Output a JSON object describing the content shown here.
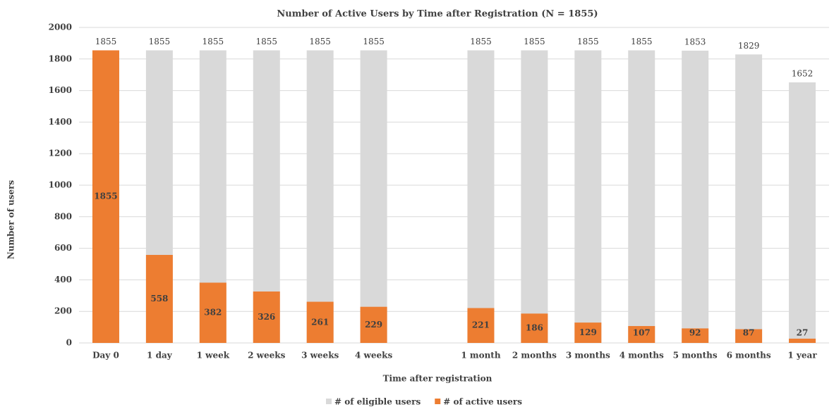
{
  "chart_data": {
    "type": "bar",
    "title": "Number of Active Users by Time after Registration (N = 1855)",
    "xlabel": "Time after registration",
    "ylabel": "Number of users",
    "categories": [
      "Day 0",
      "1 day",
      "1 week",
      "2 weeks",
      "3 weeks",
      "4 weeks",
      null,
      "1 month",
      "2 months",
      "3 months",
      "4 months",
      "5 months",
      "6 months",
      "1 year"
    ],
    "series": [
      {
        "name": "# of eligible users",
        "color": "#d9d9d9",
        "values": [
          1855,
          1855,
          1855,
          1855,
          1855,
          1855,
          null,
          1855,
          1855,
          1855,
          1855,
          1853,
          1829,
          1652
        ]
      },
      {
        "name": "# of active users",
        "color": "#ed7d31",
        "values": [
          1855,
          558,
          382,
          326,
          261,
          229,
          null,
          221,
          186,
          129,
          107,
          92,
          87,
          27
        ]
      }
    ],
    "ylim": [
      0,
      2000
    ],
    "yticks": [
      0,
      200,
      400,
      600,
      800,
      1000,
      1200,
      1400,
      1600,
      1800,
      2000
    ],
    "grid": true,
    "legend": "bottom"
  }
}
